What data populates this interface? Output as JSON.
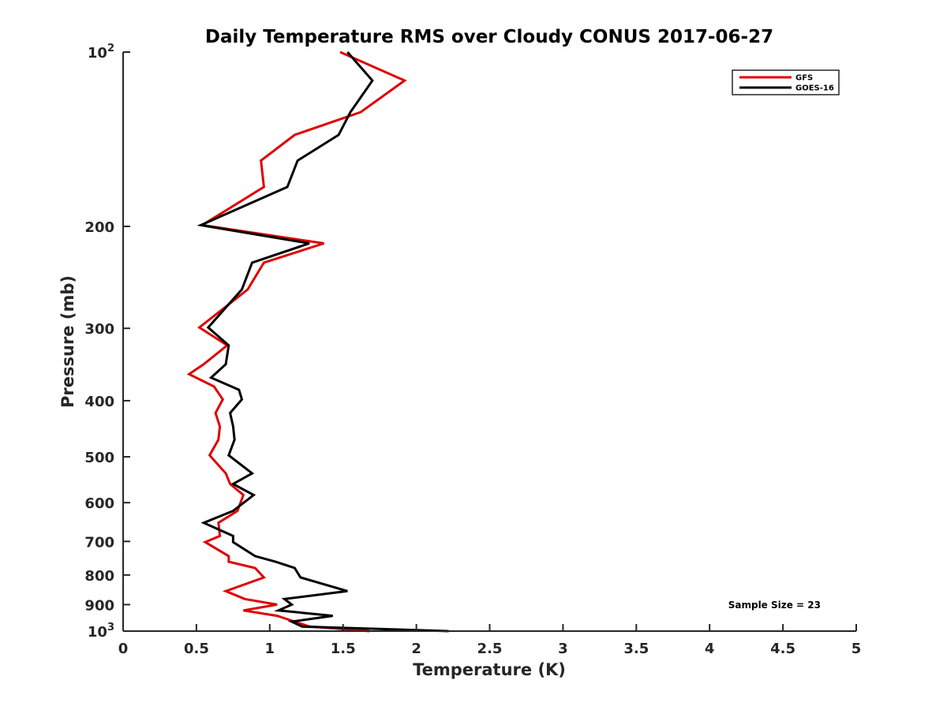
{
  "chart_data": {
    "type": "line",
    "title": "Daily Temperature RMS over Cloudy CONUS 2017-06-27",
    "xlabel": "Temperature (K)",
    "ylabel": "Pressure (mb)",
    "xlim": [
      0,
      5
    ],
    "ylim": [
      100,
      1000
    ],
    "yscale": "log",
    "y_reversed": true,
    "x_ticks": [
      "0",
      "0.5",
      "1",
      "1.5",
      "2",
      "2.5",
      "3",
      "3.5",
      "4",
      "4.5",
      "5"
    ],
    "y_ticks": [
      {
        "value": 100,
        "label": "10",
        "sup": "2"
      },
      {
        "value": 200,
        "label": "200",
        "sup": ""
      },
      {
        "value": 300,
        "label": "300",
        "sup": ""
      },
      {
        "value": 400,
        "label": "400",
        "sup": ""
      },
      {
        "value": 500,
        "label": "500",
        "sup": ""
      },
      {
        "value": 600,
        "label": "600",
        "sup": ""
      },
      {
        "value": 700,
        "label": "700",
        "sup": ""
      },
      {
        "value": 800,
        "label": "800",
        "sup": ""
      },
      {
        "value": 900,
        "label": "900",
        "sup": ""
      },
      {
        "value": 1000,
        "label": "10",
        "sup": "3"
      }
    ],
    "grid": false,
    "legend_position": "top-right",
    "annotation": "Sample Size = 23",
    "series": [
      {
        "name": "GFS",
        "color": "#e00000",
        "points": [
          [
            1.48,
            100
          ],
          [
            1.92,
            112
          ],
          [
            1.62,
            127
          ],
          [
            1.17,
            139
          ],
          [
            0.94,
            154
          ],
          [
            0.96,
            171
          ],
          [
            0.54,
            199
          ],
          [
            1.37,
            214
          ],
          [
            0.96,
            231
          ],
          [
            0.85,
            257
          ],
          [
            0.52,
            299
          ],
          [
            0.71,
            321
          ],
          [
            0.55,
            346
          ],
          [
            0.45,
            360
          ],
          [
            0.62,
            378
          ],
          [
            0.68,
            398
          ],
          [
            0.63,
            420
          ],
          [
            0.66,
            443
          ],
          [
            0.65,
            467
          ],
          [
            0.59,
            497
          ],
          [
            0.7,
            534
          ],
          [
            0.73,
            557
          ],
          [
            0.82,
            582
          ],
          [
            0.78,
            620
          ],
          [
            0.65,
            650
          ],
          [
            0.66,
            685
          ],
          [
            0.56,
            702
          ],
          [
            0.72,
            742
          ],
          [
            0.72,
            759
          ],
          [
            0.9,
            778
          ],
          [
            0.96,
            808
          ],
          [
            0.7,
            853
          ],
          [
            0.83,
            880
          ],
          [
            1.05,
            900
          ],
          [
            0.82,
            921
          ],
          [
            1.05,
            941
          ],
          [
            1.17,
            963
          ],
          [
            1.27,
            982
          ],
          [
            1.68,
            1000
          ]
        ]
      },
      {
        "name": "GOES-16",
        "color": "#000000",
        "points": [
          [
            1.53,
            100
          ],
          [
            1.7,
            112
          ],
          [
            1.55,
            127
          ],
          [
            1.47,
            139
          ],
          [
            1.19,
            154
          ],
          [
            1.12,
            171
          ],
          [
            0.53,
            199
          ],
          [
            1.27,
            214
          ],
          [
            0.88,
            231
          ],
          [
            0.81,
            257
          ],
          [
            0.58,
            299
          ],
          [
            0.72,
            321
          ],
          [
            0.7,
            346
          ],
          [
            0.6,
            365
          ],
          [
            0.79,
            383
          ],
          [
            0.81,
            398
          ],
          [
            0.73,
            420
          ],
          [
            0.75,
            443
          ],
          [
            0.76,
            467
          ],
          [
            0.72,
            497
          ],
          [
            0.88,
            534
          ],
          [
            0.75,
            557
          ],
          [
            0.89,
            582
          ],
          [
            0.75,
            620
          ],
          [
            0.55,
            650
          ],
          [
            0.75,
            685
          ],
          [
            0.75,
            702
          ],
          [
            0.9,
            742
          ],
          [
            1.04,
            759
          ],
          [
            1.17,
            778
          ],
          [
            1.21,
            808
          ],
          [
            1.53,
            853
          ],
          [
            1.1,
            880
          ],
          [
            1.15,
            900
          ],
          [
            1.06,
            921
          ],
          [
            1.43,
            941
          ],
          [
            1.15,
            963
          ],
          [
            1.22,
            982
          ],
          [
            2.22,
            1000
          ]
        ]
      }
    ]
  }
}
